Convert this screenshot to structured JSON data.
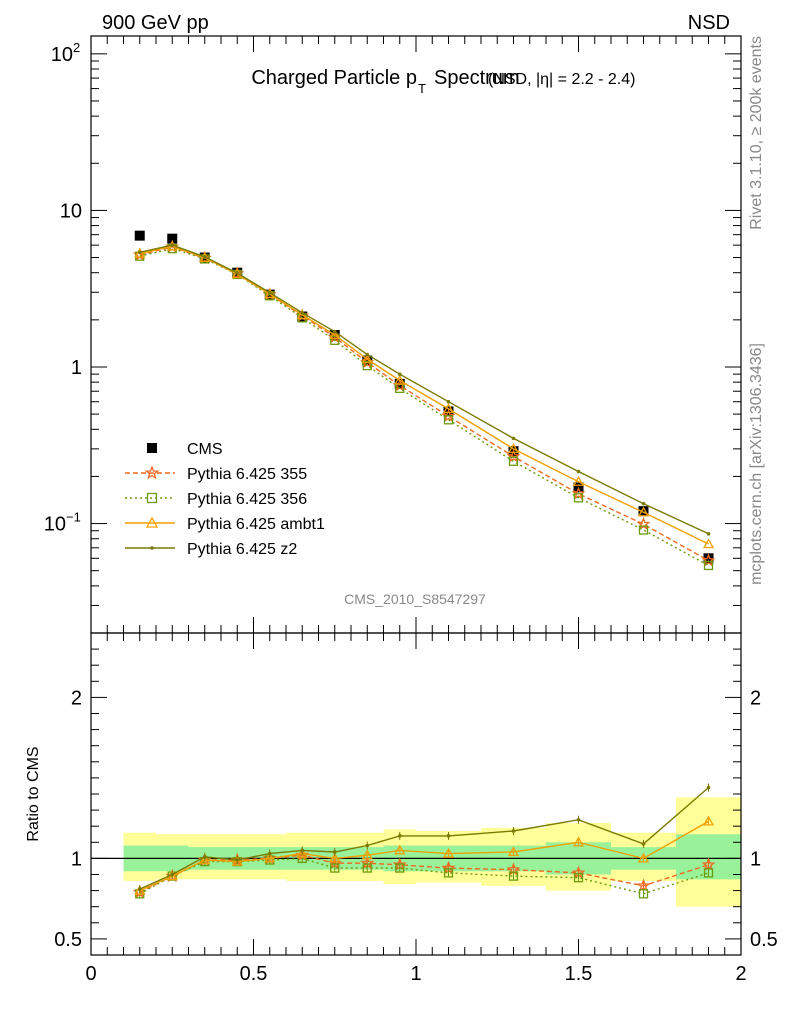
{
  "header": {
    "left": "900 GeV pp",
    "right": "NSD",
    "side_top": "Rivet 3.1.10, ≥ 200k events",
    "side_bottom": "mcplots.cern.ch [arXiv:1306.3436]"
  },
  "chart_data": [
    {
      "type": "scatter",
      "panel": "main",
      "title_main": "Charged Particle p",
      "title_sub": "T",
      "title_word": "Spectrum",
      "title_extra": "(NSD, |η| = 2.2 - 2.4)",
      "watermark": "CMS_2010_S8547297",
      "yscale": "log",
      "xlim": [
        0,
        2
      ],
      "ylim": [
        0.02,
        130
      ],
      "ytick_labels": [
        {
          "value": 100,
          "base": "10",
          "exp": "2"
        },
        {
          "value": 10,
          "base": "10",
          "exp": ""
        },
        {
          "value": 1,
          "base": "1",
          "exp": ""
        },
        {
          "value": 0.1,
          "base": "10",
          "exp": "−1"
        }
      ],
      "legend_position": "bottom-left",
      "x": [
        0.15,
        0.25,
        0.35,
        0.45,
        0.55,
        0.65,
        0.75,
        0.85,
        0.95,
        1.1,
        1.3,
        1.5,
        1.7,
        1.9
      ],
      "series": [
        {
          "name": "CMS",
          "style": "data",
          "color": "#000000",
          "values": [
            6.9,
            6.6,
            5.0,
            4.0,
            2.9,
            2.1,
            1.6,
            1.1,
            0.78,
            0.52,
            0.29,
            0.17,
            0.12,
            0.06
          ]
        },
        {
          "name": "Pythia 6.425 355",
          "style": "star-dashed",
          "color": "#ee6a21",
          "values": [
            5.2,
            5.85,
            4.95,
            3.95,
            2.9,
            2.12,
            1.55,
            1.07,
            0.76,
            0.485,
            0.268,
            0.155,
            0.099,
            0.058
          ]
        },
        {
          "name": "Pythia 6.425 356",
          "style": "square-dotted",
          "color": "#6e9b0d",
          "values": [
            5.1,
            5.7,
            4.9,
            3.9,
            2.85,
            2.06,
            1.48,
            1.02,
            0.73,
            0.46,
            0.25,
            0.146,
            0.091,
            0.054
          ]
        },
        {
          "name": "Pythia 6.425 ambt1",
          "style": "triangle-solid",
          "color": "#f0a000",
          "values": [
            5.3,
            5.9,
            4.98,
            3.92,
            2.92,
            2.15,
            1.6,
            1.12,
            0.82,
            0.54,
            0.3,
            0.185,
            0.118,
            0.074
          ]
        },
        {
          "name": "Pythia 6.425 z2",
          "style": "dot-solid",
          "color": "#7a7a00",
          "values": [
            5.4,
            6.0,
            5.05,
            3.98,
            2.98,
            2.22,
            1.68,
            1.2,
            0.9,
            0.6,
            0.35,
            0.215,
            0.134,
            0.086
          ]
        }
      ]
    },
    {
      "type": "line",
      "panel": "ratio",
      "ylabel": "Ratio to CMS",
      "xlim": [
        0,
        2
      ],
      "ylim": [
        0.4,
        2.4
      ],
      "ytick_labels": [
        "0.5",
        "1",
        "2"
      ],
      "xtick_labels": [
        "0",
        "0.5",
        "1",
        "1.5",
        "2"
      ],
      "reference_line": 1,
      "band_edges": [
        0.1,
        0.2,
        0.3,
        0.4,
        0.5,
        0.6,
        0.7,
        0.8,
        0.9,
        1.0,
        1.2,
        1.4,
        1.6,
        1.8,
        2.0
      ],
      "band_inner": [
        [
          0.92,
          1.08
        ],
        [
          0.92,
          1.08
        ],
        [
          0.93,
          1.07
        ],
        [
          0.93,
          1.07
        ],
        [
          0.93,
          1.07
        ],
        [
          0.93,
          1.07
        ],
        [
          0.93,
          1.07
        ],
        [
          0.93,
          1.07
        ],
        [
          0.92,
          1.08
        ],
        [
          0.92,
          1.08
        ],
        [
          0.92,
          1.08
        ],
        [
          0.9,
          1.1
        ],
        [
          0.93,
          1.07
        ],
        [
          0.87,
          1.15
        ]
      ],
      "band_outer": [
        [
          0.86,
          1.16
        ],
        [
          0.87,
          1.15
        ],
        [
          0.87,
          1.15
        ],
        [
          0.87,
          1.15
        ],
        [
          0.87,
          1.15
        ],
        [
          0.86,
          1.16
        ],
        [
          0.86,
          1.16
        ],
        [
          0.86,
          1.16
        ],
        [
          0.84,
          1.18
        ],
        [
          0.85,
          1.17
        ],
        [
          0.83,
          1.19
        ],
        [
          0.8,
          1.22
        ],
        [
          0.86,
          1.16
        ],
        [
          0.7,
          1.38
        ]
      ],
      "band_colors": {
        "inner": "#99f29a",
        "outer": "#ffff99"
      },
      "x": [
        0.15,
        0.25,
        0.35,
        0.45,
        0.55,
        0.65,
        0.75,
        0.85,
        0.95,
        1.1,
        1.3,
        1.5,
        1.7,
        1.9
      ],
      "series": [
        {
          "name": "Pythia 6.425 355",
          "style": "star-dashed",
          "color": "#ee6a21",
          "values": [
            0.79,
            0.89,
            0.99,
            0.99,
            1.0,
            1.02,
            0.97,
            0.97,
            0.96,
            0.94,
            0.93,
            0.91,
            0.83,
            0.96
          ]
        },
        {
          "name": "Pythia 6.425 356",
          "style": "square-dotted",
          "color": "#6e9b0d",
          "values": [
            0.78,
            0.89,
            0.98,
            0.98,
            0.99,
            1.0,
            0.94,
            0.94,
            0.94,
            0.91,
            0.89,
            0.88,
            0.78,
            0.91
          ]
        },
        {
          "name": "Pythia 6.425 ambt1",
          "style": "triangle-solid",
          "color": "#f0a000",
          "values": [
            0.8,
            0.89,
            0.99,
            0.98,
            1.0,
            1.03,
            1.0,
            1.02,
            1.05,
            1.03,
            1.04,
            1.1,
            1.0,
            1.23
          ]
        },
        {
          "name": "Pythia 6.425 z2",
          "style": "dot-solid",
          "color": "#7a7a00",
          "values": [
            0.81,
            0.9,
            1.01,
            0.99,
            1.03,
            1.05,
            1.04,
            1.08,
            1.14,
            1.14,
            1.17,
            1.24,
            1.09,
            1.44
          ]
        }
      ]
    }
  ]
}
